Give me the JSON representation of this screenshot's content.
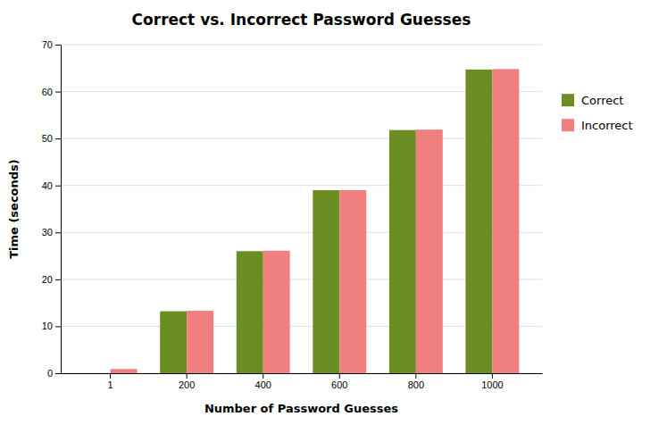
{
  "chart_data": {
    "type": "bar",
    "title": "Correct vs. Incorrect Password Guesses",
    "xlabel": "Number of Password Guesses",
    "ylabel": "Time (seconds)",
    "categories": [
      1,
      200,
      400,
      600,
      800,
      1000
    ],
    "series": [
      {
        "name": "Correct",
        "color": "#6B8E23",
        "values": [
          0.0,
          13.2,
          26.0,
          39.0,
          51.8,
          64.7
        ]
      },
      {
        "name": "Incorrect",
        "color": "#F08080",
        "values": [
          0.9,
          13.3,
          26.1,
          39.0,
          51.9,
          64.8
        ]
      }
    ],
    "ylim": [
      0,
      70
    ],
    "yticks": [
      0,
      10,
      20,
      30,
      40,
      50,
      60,
      70
    ],
    "grid": true,
    "legend": "right"
  }
}
